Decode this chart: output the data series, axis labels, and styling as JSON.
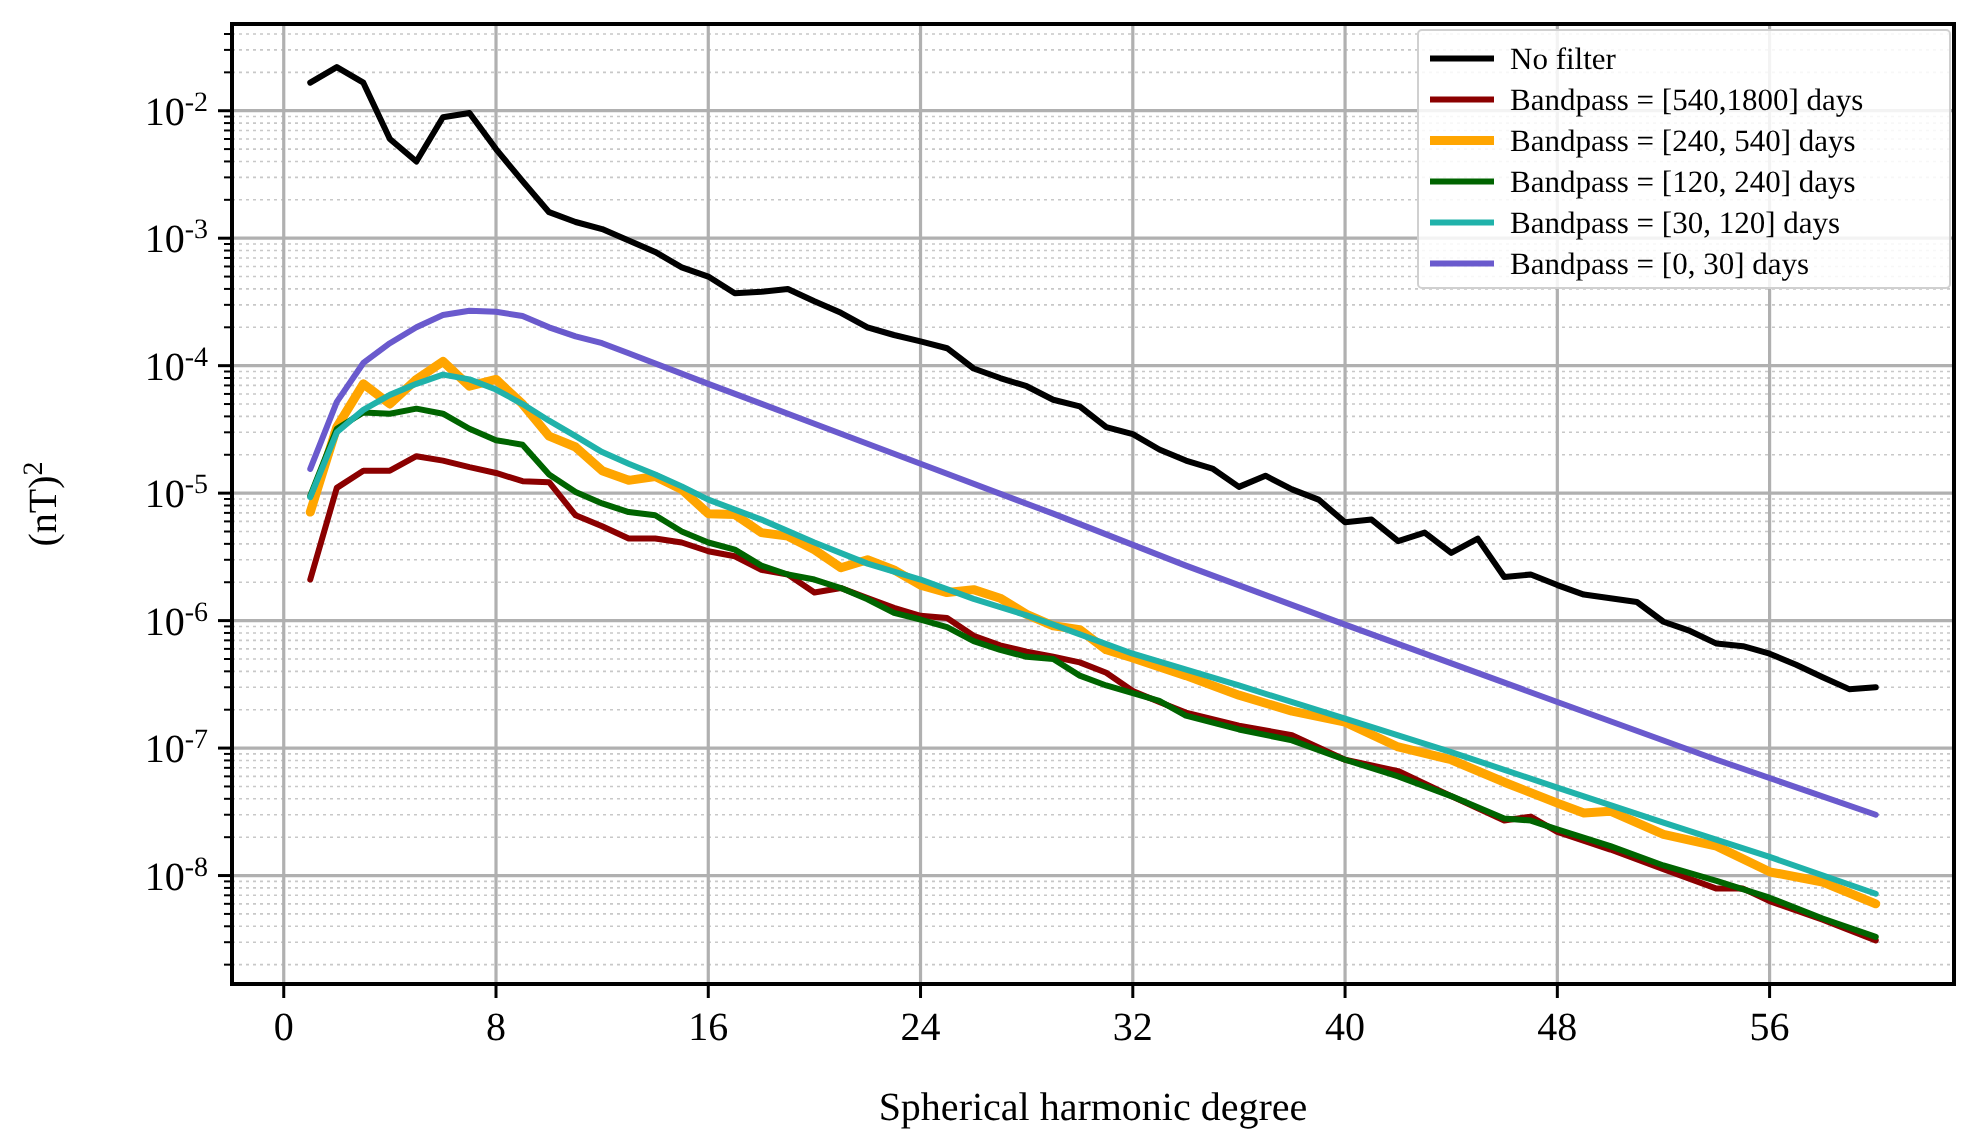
{
  "chart_data": {
    "type": "line",
    "xlabel": "Spherical harmonic degree",
    "ylabel": "(nT)$^{2}$",
    "log": "y",
    "grid": true,
    "legend": "top right",
    "line_style": "solid",
    "marker": "none",
    "xlim": [
      -1.95,
      62.95
    ],
    "xticks": [
      0,
      8,
      16,
      24,
      32,
      40,
      48,
      56
    ],
    "ylim": [
      1.41e-09,
      0.0479
    ],
    "yticks": [
      {
        "value": 2e-09,
        "label": null
      },
      {
        "value": 3e-09,
        "label": null
      },
      {
        "value": 4e-09,
        "label": null
      },
      {
        "value": 5e-09,
        "label": null
      },
      {
        "value": 6e-09,
        "label": null
      },
      {
        "value": 7e-09,
        "label": null
      },
      {
        "value": 8e-09,
        "label": null
      },
      {
        "value": 9e-09,
        "label": null
      },
      {
        "value": 1e-08,
        "label": "10$^{-8}$"
      },
      {
        "value": 2e-08,
        "label": null
      },
      {
        "value": 3e-08,
        "label": null
      },
      {
        "value": 4e-08,
        "label": null
      },
      {
        "value": 5e-08,
        "label": null
      },
      {
        "value": 6e-08,
        "label": null
      },
      {
        "value": 7e-08,
        "label": null
      },
      {
        "value": 8e-08,
        "label": null
      },
      {
        "value": 9e-08,
        "label": null
      },
      {
        "value": 1e-07,
        "label": "10$^{-7}$"
      },
      {
        "value": 2e-07,
        "label": null
      },
      {
        "value": 3e-07,
        "label": null
      },
      {
        "value": 4e-07,
        "label": null
      },
      {
        "value": 5e-07,
        "label": null
      },
      {
        "value": 6e-07,
        "label": null
      },
      {
        "value": 7e-07,
        "label": null
      },
      {
        "value": 8e-07,
        "label": null
      },
      {
        "value": 9e-07,
        "label": null
      },
      {
        "value": 1e-06,
        "label": "10$^{-6}$"
      },
      {
        "value": 2e-06,
        "label": null
      },
      {
        "value": 3e-06,
        "label": null
      },
      {
        "value": 4e-06,
        "label": null
      },
      {
        "value": 5e-06,
        "label": null
      },
      {
        "value": 6e-06,
        "label": null
      },
      {
        "value": 7e-06,
        "label": null
      },
      {
        "value": 8e-06,
        "label": null
      },
      {
        "value": 9e-06,
        "label": null
      },
      {
        "value": 1e-05,
        "label": "10$^{-5}$"
      },
      {
        "value": 2e-05,
        "label": null
      },
      {
        "value": 3e-05,
        "label": null
      },
      {
        "value": 4e-05,
        "label": null
      },
      {
        "value": 5e-05,
        "label": null
      },
      {
        "value": 6e-05,
        "label": null
      },
      {
        "value": 7e-05,
        "label": null
      },
      {
        "value": 8e-05,
        "label": null
      },
      {
        "value": 9e-05,
        "label": null
      },
      {
        "value": 0.0001,
        "label": "10$^{-4}$"
      },
      {
        "value": 0.0002,
        "label": null
      },
      {
        "value": 0.0003,
        "label": null
      },
      {
        "value": 0.0004,
        "label": null
      },
      {
        "value": 0.0005,
        "label": null
      },
      {
        "value": 0.0006,
        "label": null
      },
      {
        "value": 0.0007,
        "label": null
      },
      {
        "value": 0.0008,
        "label": null
      },
      {
        "value": 0.0009,
        "label": null
      },
      {
        "value": 0.001,
        "label": "10$^{-3}$"
      },
      {
        "value": 0.002,
        "label": null
      },
      {
        "value": 0.003,
        "label": null
      },
      {
        "value": 0.004,
        "label": null
      },
      {
        "value": 0.005,
        "label": null
      },
      {
        "value": 0.006,
        "label": null
      },
      {
        "value": 0.007,
        "label": null
      },
      {
        "value": 0.008,
        "label": null
      },
      {
        "value": 0.009,
        "label": null
      },
      {
        "value": 0.01,
        "label": "10$^{-2}$"
      },
      {
        "value": 0.02,
        "label": null
      },
      {
        "value": 0.03,
        "label": null
      },
      {
        "value": 0.04,
        "label": null
      }
    ],
    "series": [
      {
        "name": "No filter",
        "color": "#000000",
        "x": [
          1,
          2,
          3,
          4,
          5,
          6,
          7,
          8,
          9,
          10,
          11,
          12,
          13,
          14,
          15,
          16,
          17,
          18,
          19,
          20,
          21,
          22,
          23,
          24,
          25,
          26,
          27,
          28,
          29,
          30,
          31,
          32,
          33,
          34,
          35,
          36,
          37,
          38,
          39,
          40,
          41,
          42,
          43,
          44,
          45,
          46,
          47,
          48,
          49,
          50,
          51,
          52,
          53,
          54,
          55,
          56,
          57,
          58,
          59,
          60
        ],
        "values": [
          0.0166,
          0.022,
          0.0166,
          0.006,
          0.004,
          0.0089,
          0.0096,
          0.005,
          0.0028,
          0.0016,
          0.00134,
          0.00118,
          0.00096,
          0.00078,
          0.00059,
          0.0005,
          0.00037,
          0.00038,
          0.0004,
          0.00032,
          0.00026,
          0.0002,
          0.000174,
          0.000155,
          0.000137,
          9.5e-05,
          8e-05,
          6.9e-05,
          5.4e-05,
          4.8e-05,
          3.3e-05,
          2.9e-05,
          2.2e-05,
          1.8e-05,
          1.56e-05,
          1.12e-05,
          1.37e-05,
          1.07e-05,
          8.9e-06,
          5.9e-06,
          6.2e-06,
          4.2e-06,
          4.9e-06,
          3.4e-06,
          4.4e-06,
          2.2e-06,
          2.3e-06,
          1.9e-06,
          1.6e-06,
          1.5e-06,
          1.4e-06,
          9.8e-07,
          8.3e-07,
          6.6e-07,
          6.3e-07,
          5.5e-07,
          4.5e-07,
          3.6e-07,
          2.9e-07,
          3e-07
        ]
      },
      {
        "name": "Bandpass = [540,1800] days",
        "color": "#8b0000",
        "x": [
          1,
          2,
          3,
          4,
          5,
          6,
          7,
          8,
          9,
          10,
          11,
          12,
          13,
          14,
          15,
          16,
          17,
          18,
          19,
          20,
          21,
          22,
          23,
          24,
          25,
          26,
          27,
          28,
          29,
          30,
          31,
          32,
          33,
          34,
          36,
          38,
          40,
          42,
          44,
          46,
          47,
          48,
          50,
          52,
          54,
          55,
          56,
          58,
          60
        ],
        "values": [
          2.1e-06,
          1.1e-05,
          1.5e-05,
          1.5e-05,
          1.95e-05,
          1.8e-05,
          1.6e-05,
          1.44e-05,
          1.24e-05,
          1.22e-05,
          6.7e-06,
          5.5e-06,
          4.4e-06,
          4.4e-06,
          4.1e-06,
          3.5e-06,
          3.2e-06,
          2.5e-06,
          2.3e-06,
          1.66e-06,
          1.8e-06,
          1.5e-06,
          1.26e-06,
          1.09e-06,
          1.05e-06,
          7.6e-07,
          6.4e-07,
          5.7e-07,
          5.2e-07,
          4.7e-07,
          3.9e-07,
          2.8e-07,
          2.3e-07,
          1.9e-07,
          1.5e-07,
          1.26e-07,
          8.1e-08,
          6.6e-08,
          4.2e-08,
          2.7e-08,
          2.9e-08,
          2.2e-08,
          1.6e-08,
          1.12e-08,
          7.9e-09,
          7.9e-09,
          6.3e-09,
          4.5e-09,
          3.1e-09
        ]
      },
      {
        "name": "Bandpass = [240, 540] days",
        "color": "#ffa500",
        "x": [
          1,
          2,
          3,
          4,
          5,
          6,
          7,
          8,
          9,
          10,
          11,
          12,
          13,
          14,
          15,
          16,
          17,
          18,
          19,
          20,
          21,
          22,
          23,
          24,
          25,
          26,
          27,
          28,
          29,
          30,
          31,
          32,
          34,
          36,
          38,
          40,
          42,
          44,
          46,
          48,
          49,
          50,
          52,
          54,
          56,
          58,
          60
        ],
        "values": [
          7.1e-06,
          3.3e-05,
          7.2e-05,
          5e-05,
          7.8e-05,
          0.000108,
          6.9e-05,
          7.8e-05,
          5e-05,
          2.8e-05,
          2.3e-05,
          1.5e-05,
          1.26e-05,
          1.35e-05,
          1.07e-05,
          6.9e-06,
          6.8e-06,
          4.9e-06,
          4.6e-06,
          3.6e-06,
          2.6e-06,
          3e-06,
          2.5e-06,
          1.9e-06,
          1.66e-06,
          1.75e-06,
          1.5e-06,
          1.12e-06,
          9.1e-07,
          8.5e-07,
          5.9e-07,
          5.1e-07,
          3.7e-07,
          2.6e-07,
          1.95e-07,
          1.6e-07,
          1.02e-07,
          8.1e-08,
          5.4e-08,
          3.7e-08,
          3.1e-08,
          3.2e-08,
          2.1e-08,
          1.7e-08,
          1.07e-08,
          8.9e-09,
          6e-09
        ]
      },
      {
        "name": "Bandpass = [120, 240] days",
        "color": "#006400",
        "x": [
          1,
          2,
          3,
          4,
          5,
          6,
          7,
          8,
          9,
          10,
          11,
          12,
          13,
          14,
          15,
          16,
          17,
          18,
          19,
          20,
          21,
          22,
          23,
          24,
          25,
          26,
          27,
          28,
          29,
          30,
          31,
          32,
          33,
          34,
          36,
          38,
          40,
          42,
          44,
          46,
          47,
          48,
          50,
          52,
          54,
          56,
          58,
          60
        ],
        "values": [
          9.5e-06,
          3.2e-05,
          4.3e-05,
          4.2e-05,
          4.6e-05,
          4.2e-05,
          3.2e-05,
          2.6e-05,
          2.4e-05,
          1.4e-05,
          1.02e-05,
          8.3e-06,
          7.1e-06,
          6.7e-06,
          5e-06,
          4.1e-06,
          3.6e-06,
          2.7e-06,
          2.3e-06,
          2.1e-06,
          1.8e-06,
          1.47e-06,
          1.15e-06,
          1.02e-06,
          8.9e-07,
          6.9e-07,
          5.9e-07,
          5.2e-07,
          5e-07,
          3.7e-07,
          3.1e-07,
          2.7e-07,
          2.35e-07,
          1.8e-07,
          1.4e-07,
          1.15e-07,
          8.1e-08,
          6e-08,
          4.2e-08,
          2.8e-08,
          2.7e-08,
          2.3e-08,
          1.7e-08,
          1.2e-08,
          9.1e-09,
          6.7e-09,
          4.6e-09,
          3.3e-09
        ]
      },
      {
        "name": "Bandpass = [30, 120] days",
        "color": "#20b2aa",
        "x": [
          1,
          2,
          3,
          4,
          5,
          6,
          7,
          8,
          9,
          10,
          11,
          12,
          13,
          14,
          15,
          16,
          18,
          20,
          22,
          24,
          26,
          28,
          29,
          32,
          36,
          40,
          44,
          48,
          52,
          56,
          60
        ],
        "values": [
          9.3e-06,
          3e-05,
          4.5e-05,
          5.9e-05,
          7.2e-05,
          8.5e-05,
          7.8e-05,
          6.5e-05,
          5e-05,
          3.7e-05,
          2.8e-05,
          2.1e-05,
          1.7e-05,
          1.4e-05,
          1.13e-05,
          8.9e-06,
          6.2e-06,
          4.1e-06,
          2.8e-06,
          2.1e-06,
          1.48e-06,
          1.1e-06,
          9.3e-07,
          5.5e-07,
          3.1e-07,
          1.7e-07,
          9.3e-08,
          4.9e-08,
          2.6e-08,
          1.4e-08,
          7.2e-09
        ]
      },
      {
        "name": "Bandpass = [0, 30] days",
        "color": "#6a5acd",
        "x": [
          1,
          2,
          3,
          4,
          5,
          6,
          7,
          8,
          9,
          10,
          11,
          12,
          13,
          16,
          20,
          24,
          29,
          34,
          40,
          48,
          54,
          60
        ],
        "values": [
          1.55e-05,
          5.2e-05,
          0.000105,
          0.00015,
          0.0002,
          0.00025,
          0.00027,
          0.000265,
          0.000245,
          0.0002,
          0.00017,
          0.00015,
          0.000125,
          7.2e-05,
          3.5e-05,
          1.7e-05,
          6.9e-06,
          2.7e-06,
          9.3e-07,
          2.3e-07,
          8.1e-08,
          3e-08
        ]
      }
    ]
  }
}
